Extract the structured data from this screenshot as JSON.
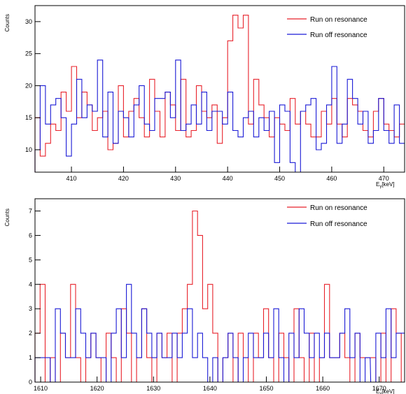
{
  "chart_data": [
    {
      "type": "line",
      "ylabel": "Counts",
      "xlabel": "E",
      "xlabel_sub": "γ",
      "xlabel_unit": "[keV]",
      "xlim": [
        403,
        474
      ],
      "ylim": [
        6.5,
        32.5
      ],
      "x_ticks": [
        410,
        420,
        430,
        440,
        450,
        460,
        470
      ],
      "y_ticks": [
        10,
        15,
        20,
        25,
        30
      ],
      "legend": {
        "placement": "top-right"
      },
      "bin_width": 1,
      "series": [
        {
          "name": "Run on resonance",
          "color": "#e8222b",
          "x": [
            403,
            404,
            405,
            406,
            407,
            408,
            409,
            410,
            411,
            412,
            413,
            414,
            415,
            416,
            417,
            418,
            419,
            420,
            421,
            422,
            423,
            424,
            425,
            426,
            427,
            428,
            429,
            430,
            431,
            432,
            433,
            434,
            435,
            436,
            437,
            438,
            439,
            440,
            441,
            442,
            443,
            444,
            445,
            446,
            447,
            448,
            449,
            450,
            451,
            452,
            453,
            454,
            455,
            456,
            457,
            458,
            459,
            460,
            461,
            462,
            463,
            464,
            465,
            466,
            467,
            468,
            469,
            470,
            471,
            472,
            473
          ],
          "values": [
            15,
            9,
            11,
            14,
            13,
            19,
            16,
            23,
            15,
            19,
            17,
            13,
            15,
            16,
            10,
            11,
            20,
            12,
            16,
            18,
            15,
            12,
            21,
            16,
            12,
            19,
            17,
            13,
            21,
            12,
            13,
            20,
            16,
            15,
            17,
            11,
            15,
            27,
            31,
            29,
            31,
            14,
            21,
            17,
            15,
            12,
            15,
            14,
            13,
            18,
            14,
            16,
            14,
            12,
            12,
            16,
            14,
            18,
            14,
            12,
            18,
            17,
            16,
            13,
            12,
            16,
            18,
            14,
            13,
            12,
            14
          ]
        },
        {
          "name": "Run off resonance",
          "color": "#1a1ad6",
          "x": [
            403,
            404,
            405,
            406,
            407,
            408,
            409,
            410,
            411,
            412,
            413,
            414,
            415,
            416,
            417,
            418,
            419,
            420,
            421,
            422,
            423,
            424,
            425,
            426,
            427,
            428,
            429,
            430,
            431,
            432,
            433,
            434,
            435,
            436,
            437,
            438,
            439,
            440,
            441,
            442,
            443,
            444,
            445,
            446,
            447,
            448,
            449,
            450,
            451,
            452,
            453,
            454,
            455,
            456,
            457,
            458,
            459,
            460,
            461,
            462,
            463,
            464,
            465,
            466,
            467,
            468,
            469,
            470,
            471,
            472,
            473
          ],
          "values": [
            10,
            20,
            14,
            17,
            18,
            15,
            9,
            14,
            21,
            15,
            17,
            16,
            24,
            12,
            19,
            11,
            16,
            15,
            12,
            17,
            20,
            14,
            13,
            18,
            18,
            19,
            15,
            24,
            13,
            14,
            17,
            14,
            19,
            13,
            16,
            16,
            14,
            19,
            13,
            12,
            15,
            16,
            12,
            15,
            13,
            16,
            8,
            17,
            16,
            8,
            6,
            16,
            17,
            18,
            10,
            11,
            17,
            23,
            11,
            14,
            21,
            18,
            14,
            16,
            11,
            13,
            18,
            13,
            11,
            17,
            11
          ]
        }
      ]
    },
    {
      "type": "line",
      "ylabel": "Counts",
      "xlabel": "E",
      "xlabel_sub": "γ",
      "xlabel_unit": "[keV]",
      "xlim": [
        1609,
        1674.5
      ],
      "ylim": [
        0,
        7.5
      ],
      "x_ticks": [
        1610,
        1620,
        1630,
        1640,
        1650,
        1660,
        1670
      ],
      "y_ticks": [
        0,
        1,
        2,
        3,
        4,
        5,
        6,
        7
      ],
      "legend": {
        "placement": "top-right"
      },
      "bin_width": 0.9,
      "series": [
        {
          "name": "Run on resonance",
          "color": "#e8222b",
          "x": [
            1609.0,
            1609.9,
            1610.8,
            1611.7,
            1612.6,
            1613.5,
            1614.4,
            1615.3,
            1616.2,
            1617.1,
            1618.0,
            1618.9,
            1619.8,
            1620.7,
            1621.6,
            1622.5,
            1623.4,
            1624.3,
            1625.2,
            1626.1,
            1627.0,
            1627.9,
            1628.8,
            1629.7,
            1630.6,
            1631.5,
            1632.4,
            1633.3,
            1634.2,
            1635.1,
            1636.0,
            1636.9,
            1637.8,
            1638.7,
            1639.6,
            1640.5,
            1641.4,
            1642.3,
            1643.2,
            1644.1,
            1645.0,
            1645.9,
            1646.8,
            1647.7,
            1648.6,
            1649.5,
            1650.4,
            1651.3,
            1652.2,
            1653.1,
            1654.0,
            1654.9,
            1655.8,
            1656.7,
            1657.6,
            1658.5,
            1659.4,
            1660.3,
            1661.2,
            1662.1,
            1663.0,
            1663.9,
            1664.8,
            1665.7,
            1666.6,
            1667.5,
            1668.5,
            1669.4,
            1670.3,
            1671.2,
            1672.1,
            1673.0,
            1673.9
          ],
          "values": [
            2,
            4,
            0,
            1,
            0,
            2,
            1,
            4,
            1,
            0,
            1,
            2,
            1,
            0,
            2,
            1,
            0,
            3,
            2,
            0,
            1,
            3,
            1,
            0,
            2,
            1,
            2,
            0,
            2,
            3,
            4,
            7,
            6,
            3,
            4,
            2,
            0,
            1,
            2,
            0,
            2,
            1,
            0,
            2,
            1,
            3,
            1,
            0,
            2,
            1,
            0,
            3,
            1,
            0,
            2,
            0,
            1,
            4,
            1,
            1,
            2,
            1,
            0,
            2,
            1,
            1,
            1,
            0,
            2,
            0,
            3,
            2,
            0
          ]
        },
        {
          "name": "Run off resonance",
          "color": "#1a1ad6",
          "x": [
            1609.0,
            1609.9,
            1610.8,
            1611.7,
            1612.6,
            1613.5,
            1614.4,
            1615.3,
            1616.2,
            1617.1,
            1618.0,
            1618.9,
            1619.8,
            1620.7,
            1621.6,
            1622.5,
            1623.4,
            1624.3,
            1625.2,
            1626.1,
            1627.0,
            1627.9,
            1628.8,
            1629.7,
            1630.6,
            1631.5,
            1632.4,
            1633.3,
            1634.2,
            1635.1,
            1636.0,
            1636.9,
            1637.8,
            1638.7,
            1639.6,
            1640.5,
            1641.4,
            1642.3,
            1643.2,
            1644.1,
            1645.0,
            1645.9,
            1646.8,
            1647.7,
            1648.6,
            1649.5,
            1650.4,
            1651.3,
            1652.2,
            1653.1,
            1654.0,
            1654.9,
            1655.8,
            1656.7,
            1657.6,
            1658.5,
            1659.4,
            1660.3,
            1661.2,
            1662.1,
            1663.0,
            1663.9,
            1664.8,
            1665.7,
            1666.6,
            1667.5,
            1668.5,
            1669.4,
            1670.3,
            1671.2,
            1672.1,
            1673.0,
            1673.9
          ],
          "values": [
            1,
            1,
            1,
            0,
            3,
            2,
            1,
            1,
            3,
            2,
            1,
            2,
            1,
            1,
            0,
            2,
            3,
            1,
            4,
            2,
            1,
            3,
            2,
            1,
            2,
            1,
            1,
            2,
            1,
            2,
            3,
            1,
            2,
            1,
            0,
            1,
            0,
            1,
            2,
            1,
            0,
            1,
            2,
            1,
            1,
            2,
            1,
            3,
            1,
            0,
            2,
            1,
            3,
            2,
            1,
            2,
            1,
            2,
            1,
            1,
            2,
            3,
            1,
            2,
            0,
            1,
            0,
            2,
            1,
            3,
            1,
            2,
            2
          ]
        }
      ]
    }
  ]
}
